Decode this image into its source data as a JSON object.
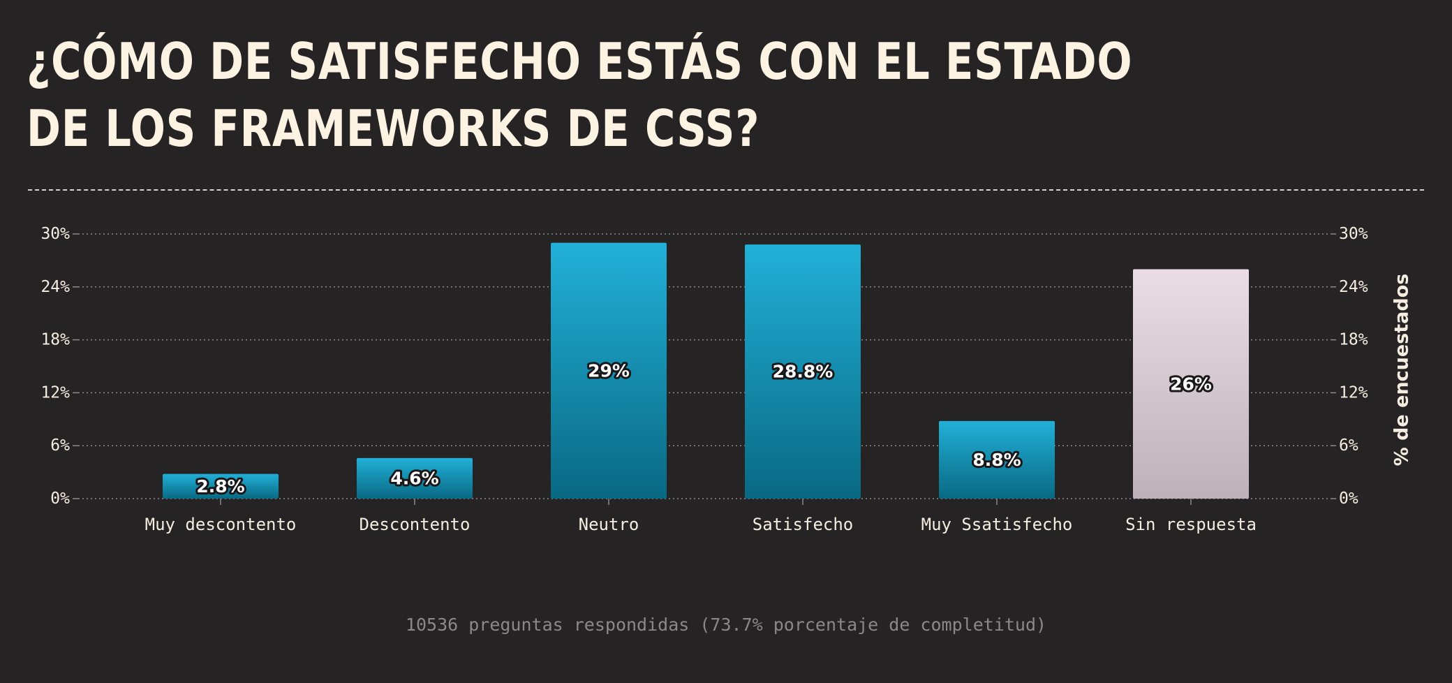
{
  "title": "¿Cómo de satisfecho estás con el estado de los frameworks de CSS?",
  "footer": "10536 preguntas respondidas (73.7% porcentaje de completitud)",
  "chart_data": {
    "type": "bar",
    "categories": [
      "Muy descontento",
      "Descontento",
      "Neutro",
      "Satisfecho",
      "Muy Ssatisfecho",
      "Sin respuesta"
    ],
    "values": [
      2.8,
      4.6,
      29,
      28.8,
      8.8,
      26
    ],
    "data_labels": [
      "2.8%",
      "4.6%",
      "29%",
      "28.8%",
      "8.8%",
      "26%"
    ],
    "yticks": [
      "0%",
      "6%",
      "12%",
      "18%",
      "24%",
      "30%"
    ],
    "ylim": [
      0,
      30
    ],
    "ylabel": "% de encuestados",
    "xlabel": "",
    "grid": true,
    "colors": {
      "bar_top": "#22b0d8",
      "bar_bottom": "#096983",
      "no_answer_top": "#eadde3",
      "no_answer_bottom": "#beb2b8",
      "grid": "#8f8a8b",
      "text": "#f5ede0"
    }
  }
}
